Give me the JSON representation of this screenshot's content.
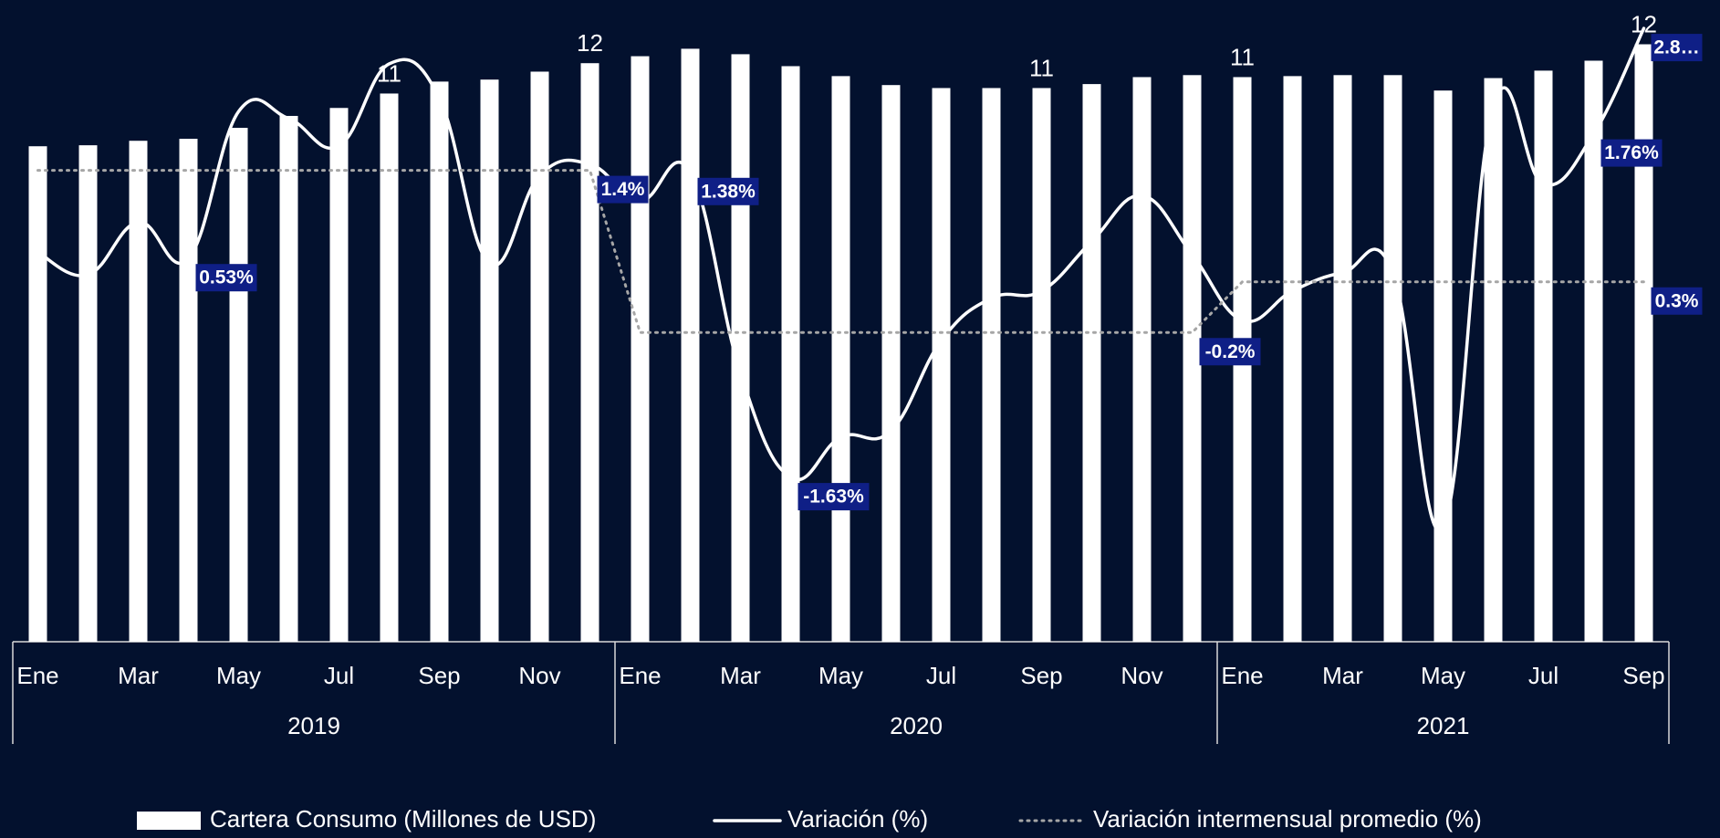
{
  "chart_data": {
    "type": "bar",
    "category_groups": [
      {
        "name": "2019",
        "categories": [
          "Ene",
          null,
          "Mar",
          null,
          "May",
          null,
          "Jul",
          null,
          "Sep",
          null,
          "Nov",
          null
        ]
      },
      {
        "name": "2020",
        "categories": [
          "Ene",
          null,
          "Mar",
          null,
          "May",
          null,
          "Jul",
          null,
          "Sep",
          null,
          "Nov",
          null
        ]
      },
      {
        "name": "2021",
        "categories": [
          "Ene",
          null,
          "Mar",
          null,
          "May",
          null,
          "Jul",
          null,
          "Sep"
        ]
      }
    ],
    "ylim": [
      0,
      12.9
    ],
    "y2lim": [
      -3.25,
      3.08
    ],
    "legend": "bottom",
    "series": [
      {
        "name": "Cartera Consumo (Millones de USD)",
        "type": "bar",
        "color": "#ffffff",
        "values": [
          9.96,
          9.98,
          10.07,
          10.11,
          10.33,
          10.57,
          10.73,
          11.02,
          11.26,
          11.3,
          11.46,
          11.63,
          11.77,
          11.92,
          11.81,
          11.57,
          11.37,
          11.19,
          11.13,
          11.13,
          11.13,
          11.21,
          11.35,
          11.39,
          11.35,
          11.37,
          11.39,
          11.39,
          11.08,
          11.33,
          11.48,
          11.68,
          12.01
        ],
        "value_labels": [
          null,
          null,
          null,
          null,
          null,
          null,
          null,
          "11",
          null,
          null,
          null,
          "12",
          null,
          null,
          null,
          null,
          null,
          null,
          null,
          null,
          "11",
          null,
          null,
          null,
          "11",
          null,
          null,
          null,
          null,
          null,
          null,
          null,
          "12"
        ]
      },
      {
        "name": "Variación (%)",
        "type": "line",
        "axis": "y2",
        "color": "#ffffff",
        "values": [
          0.59,
          0.37,
          0.89,
          0.53,
          1.98,
          1.91,
          1.64,
          2.45,
          2.11,
          0.48,
          1.35,
          1.46,
          1.1,
          1.38,
          -0.6,
          -1.63,
          -1.23,
          -1.17,
          -0.28,
          0.14,
          0.21,
          0.7,
          1.15,
          0.57,
          -0.08,
          0.21,
          0.39,
          0.39,
          -2.12,
          2.03,
          1.26,
          1.76,
          2.8
        ],
        "value_labels": [
          null,
          null,
          null,
          "0.53%",
          null,
          null,
          null,
          null,
          null,
          null,
          null,
          null,
          null,
          "1.38%",
          null,
          "-1.63%",
          null,
          null,
          null,
          null,
          null,
          null,
          null,
          null,
          null,
          null,
          null,
          null,
          null,
          null,
          null,
          "1.76%",
          "2.8…"
        ]
      },
      {
        "name": "Variación intermensual promedio (%)",
        "type": "line",
        "axis": "y2",
        "color": "#a6a6a6",
        "dash": true,
        "values": [
          1.4,
          1.4,
          1.4,
          1.4,
          1.4,
          1.4,
          1.4,
          1.4,
          1.4,
          1.4,
          1.4,
          1.4,
          -0.2,
          -0.2,
          -0.2,
          -0.2,
          -0.2,
          -0.2,
          -0.2,
          -0.2,
          -0.2,
          -0.2,
          -0.2,
          -0.2,
          0.3,
          0.3,
          0.3,
          0.3,
          0.3,
          0.3,
          0.3,
          0.3,
          0.3
        ],
        "value_labels": [
          null,
          null,
          null,
          null,
          null,
          null,
          null,
          null,
          null,
          null,
          null,
          "1.4%",
          null,
          null,
          null,
          null,
          null,
          null,
          null,
          null,
          null,
          null,
          null,
          "-0.2%",
          null,
          null,
          null,
          null,
          null,
          null,
          null,
          null,
          "0.3%"
        ]
      }
    ]
  }
}
